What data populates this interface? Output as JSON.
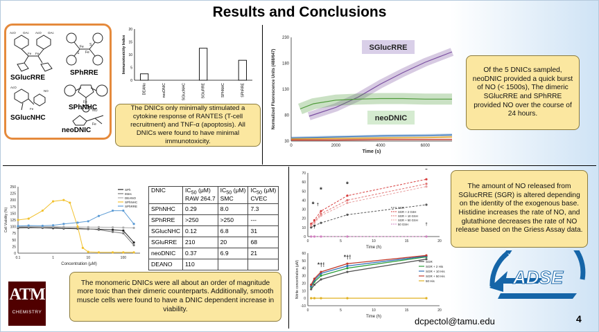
{
  "title": "Results and Conclusions",
  "structures": {
    "labels": [
      "SGlucRRE",
      "SPhRRE",
      "SGlucNHC",
      "SPhNHC",
      "neoDNIC"
    ]
  },
  "notes": {
    "immunotoxicity": "The DNICs only minimally stimulated a cytokine response of RANTES (T-cell recruitment) and TNF-α (apoptosis). All DNICs were found to have minimal immunotoxicity.",
    "no_release": "Of the 5 DNICs sampled, neoDNIC provided a quick burst of NO (< 1500s), The dimeric SGlucRRE and SPhRRE provided NO over the course of 24 hours.",
    "toxicity": "The monomeric DNICs were all about an order of magnitude more toxic than their dimeric counterparts. Additionally, smooth muscle cells were found to have a DNIC dependent increase in viability.",
    "griess": "The amount of NO released from SGlucRRE (SGR) is altered depending on the identity of the exogenous base. Histidine increases the rate of NO, and glutathione decreases the rate of NO release based on the Griess Assay data."
  },
  "ic50_table": {
    "headers": [
      "DNIC",
      "IC50 (μM) RAW 264.7",
      "IC50 (μM) SMC",
      "IC50 (μM) CVEC"
    ],
    "header_line1": [
      "IC",
      "IC",
      "IC"
    ],
    "header_sub": [
      "50",
      "50",
      "50"
    ],
    "header_unit": [
      " (μM)",
      " (μM)",
      " (μM)"
    ],
    "header_line2": [
      "RAW 264.7",
      "SMC",
      "CVEC"
    ],
    "rows": [
      [
        "SPhNHC",
        "0.29",
        "8.0",
        "7.3"
      ],
      [
        "SPhRRE",
        ">250",
        ">250",
        "---"
      ],
      [
        "SGlucNHC",
        "0.12",
        "6.8",
        "31"
      ],
      [
        "SGluRRE",
        "210",
        "20",
        "68"
      ],
      [
        "neoDNIC",
        "0.37",
        "6.9",
        "21"
      ],
      [
        "DEANO",
        "110",
        "",
        ""
      ]
    ]
  },
  "email": "dcpectol@tamu.edu",
  "page_number": "4",
  "logos": {
    "tamu_letters": "ATM",
    "tamu_text": "CHEMISTRY",
    "adse_text": "ADSE"
  },
  "colors": {
    "note_fill": "#fbe7a0",
    "struct_border": "#e58a3c",
    "tamu_maroon": "#500000",
    "adse_blue": "#1565a8"
  },
  "chart_data": [
    {
      "id": "immunotoxicity",
      "type": "bar",
      "ylabel": "Immunotoxicity Index",
      "categories": [
        "DEANo",
        "neoDNIC",
        "SGlucNHC",
        "SGluRRE",
        "SPhNHC",
        "SPhRRE"
      ],
      "values": [
        2.5,
        0,
        0,
        12.5,
        0,
        7.8
      ],
      "ylim": [
        0,
        20
      ],
      "yticks": [
        0,
        5,
        10,
        15,
        20
      ]
    },
    {
      "id": "fluorescence",
      "type": "line",
      "xlabel": "Time (s)",
      "ylabel": "Normalized Fluorescence Units (488/647)",
      "xlim": [
        0,
        7200
      ],
      "ylim": [
        30,
        230
      ],
      "xticks": [
        0,
        2000,
        4000,
        6000
      ],
      "yticks": [
        30,
        80,
        130,
        180,
        230
      ],
      "annotations": [
        "SGlucRRE",
        "neoDNIC"
      ],
      "series": [
        {
          "x": [
            800,
            2000,
            3000,
            4000,
            5000,
            6000,
            7200
          ],
          "y": [
            78,
            95,
            115,
            140,
            162,
            182,
            202
          ],
          "color": "#7a4fa0"
        },
        {
          "x": [
            400,
            1000,
            2000,
            3000,
            4000,
            5000,
            6000,
            7200
          ],
          "y": [
            92,
            102,
            109,
            111,
            112,
            112,
            111,
            111
          ],
          "color": "#4e9a3a"
        },
        {
          "x": [
            0,
            2000,
            4000,
            6000,
            7200
          ],
          "y": [
            36,
            38,
            40,
            41,
            42
          ],
          "color": "#2f6fb8"
        },
        {
          "x": [
            0,
            2000,
            4000,
            6000,
            7200
          ],
          "y": [
            34,
            35,
            36,
            37,
            38
          ],
          "color": "#e0a020"
        },
        {
          "x": [
            0,
            2000,
            4000,
            6000,
            7200
          ],
          "y": [
            32,
            32,
            33,
            33,
            33
          ],
          "color": "#c0392b"
        }
      ]
    },
    {
      "id": "viability",
      "type": "line",
      "xlabel": "Concentration (μM)",
      "ylabel": "Cell Viability (%)",
      "xscale": "log",
      "xticks": [
        0.1,
        1,
        10,
        100
      ],
      "ytick_labels": [
        "0",
        "25",
        "50",
        "75",
        "100",
        "125",
        "150",
        "175",
        "200",
        "225",
        "250"
      ],
      "xtick_labels": [
        "0.1",
        "1",
        "10",
        "100"
      ],
      "ylim": [
        0,
        250
      ],
      "legend": [
        "SPh",
        "IMes",
        "DEANO",
        "SPhNHC",
        "SPhRRE"
      ],
      "series": [
        {
          "name": "SPh",
          "x": [
            0.1,
            0.2,
            0.5,
            1,
            2,
            5,
            10,
            20,
            50,
            100,
            200
          ],
          "y": [
            95,
            96,
            95,
            94,
            93,
            92,
            91,
            90,
            88,
            85,
            40
          ],
          "color": "#222222"
        },
        {
          "name": "IMes",
          "x": [
            0.1,
            0.2,
            0.5,
            1,
            2,
            5,
            10,
            20,
            50,
            100,
            200
          ],
          "y": [
            97,
            98,
            96,
            97,
            95,
            94,
            92,
            88,
            80,
            75,
            30
          ],
          "color": "#777777"
        },
        {
          "name": "DEANO",
          "x": [
            0.1,
            0.2,
            0.5,
            1,
            2,
            5,
            10,
            20,
            50,
            100,
            200
          ],
          "y": [
            100,
            101,
            100,
            100,
            99,
            99,
            98,
            98,
            97,
            96,
            95
          ],
          "color": "#aaaaaa"
        },
        {
          "name": "SPhNHC",
          "x": [
            0.1,
            0.2,
            0.5,
            1,
            2,
            3,
            5,
            7,
            10,
            20,
            50,
            100,
            200
          ],
          "y": [
            125,
            130,
            160,
            195,
            200,
            190,
            100,
            20,
            5,
            3,
            3,
            3,
            3
          ],
          "color": "#f2c12e"
        },
        {
          "name": "SPhRRE",
          "x": [
            0.1,
            0.2,
            0.5,
            1,
            2,
            5,
            10,
            20,
            50,
            100,
            200
          ],
          "y": [
            102,
            104,
            103,
            105,
            110,
            115,
            120,
            140,
            160,
            160,
            110
          ],
          "color": "#5b9bd5"
        }
      ]
    },
    {
      "id": "griess-gsh",
      "type": "line",
      "xlabel": "Time (h)",
      "ylabel": "",
      "xlim": [
        0,
        20
      ],
      "ylim": [
        0,
        70
      ],
      "xticks": [
        0,
        5,
        10,
        15,
        20
      ],
      "yticks": [
        0,
        10,
        20,
        30,
        40,
        50,
        60,
        70
      ],
      "legend": [
        "SGR",
        "SGR + 2 GSH",
        "SGR + 10 GSH",
        "SGR + 50 GSH",
        "50 GSH"
      ],
      "annotations": [
        "*",
        "*",
        "*",
        "*",
        "†",
        "†",
        "†"
      ],
      "series": [
        {
          "name": "SGR",
          "x": [
            0.5,
            1,
            2,
            6,
            18
          ],
          "y": [
            10,
            12,
            15,
            24,
            35
          ],
          "color": "#555555"
        },
        {
          "name": "SGR + 2 GSH",
          "x": [
            0.5,
            1,
            2,
            6,
            18
          ],
          "y": [
            14,
            18,
            28,
            45,
            63
          ],
          "color": "#d63a3a"
        },
        {
          "name": "SGR + 10 GSH",
          "x": [
            0.5,
            1,
            2,
            6,
            18
          ],
          "y": [
            13,
            16,
            25,
            40,
            58
          ],
          "color": "#e07070"
        },
        {
          "name": "SGR + 50 GSH",
          "x": [
            0.5,
            1,
            2,
            6,
            18
          ],
          "y": [
            12,
            15,
            23,
            37,
            55
          ],
          "color": "#e8a0a0"
        },
        {
          "name": "50 GSH",
          "x": [
            0.5,
            1,
            2,
            6,
            18
          ],
          "y": [
            0,
            0,
            0,
            0,
            0
          ],
          "color": "#d080c0"
        }
      ]
    },
    {
      "id": "griess-his",
      "type": "line",
      "xlabel": "Time (h)",
      "ylabel": "Nitrite concentration (μM)",
      "xlim": [
        0,
        20
      ],
      "ylim": [
        -10,
        60
      ],
      "xticks": [
        0,
        5,
        10,
        15,
        20
      ],
      "yticks": [
        -10,
        0,
        10,
        20,
        30,
        40,
        50,
        60
      ],
      "legend": [
        "SGR",
        "SGR + 2 His",
        "SGR + 10 His",
        "SGR + 50 His",
        "50 His"
      ],
      "annotations": [
        "*†!",
        "*†!"
      ],
      "series": [
        {
          "name": "SGR",
          "x": [
            0.5,
            1,
            2,
            6,
            18
          ],
          "y": [
            12,
            18,
            25,
            35,
            52
          ],
          "color": "#555555"
        },
        {
          "name": "SGR + 2 His",
          "x": [
            0.5,
            1,
            2,
            6,
            18
          ],
          "y": [
            15,
            22,
            30,
            40,
            55
          ],
          "color": "#2a9d3a"
        },
        {
          "name": "SGR + 10 His",
          "x": [
            0.5,
            1,
            2,
            6,
            18
          ],
          "y": [
            16,
            24,
            33,
            43,
            56
          ],
          "color": "#2f6fb8"
        },
        {
          "name": "SGR + 50 His",
          "x": [
            0.5,
            1,
            2,
            6,
            18
          ],
          "y": [
            18,
            26,
            35,
            46,
            57
          ],
          "color": "#c0392b"
        },
        {
          "name": "50 His",
          "x": [
            0.5,
            1,
            2,
            6,
            18
          ],
          "y": [
            0,
            0,
            0,
            0,
            0
          ],
          "color": "#e0b020"
        }
      ]
    }
  ]
}
